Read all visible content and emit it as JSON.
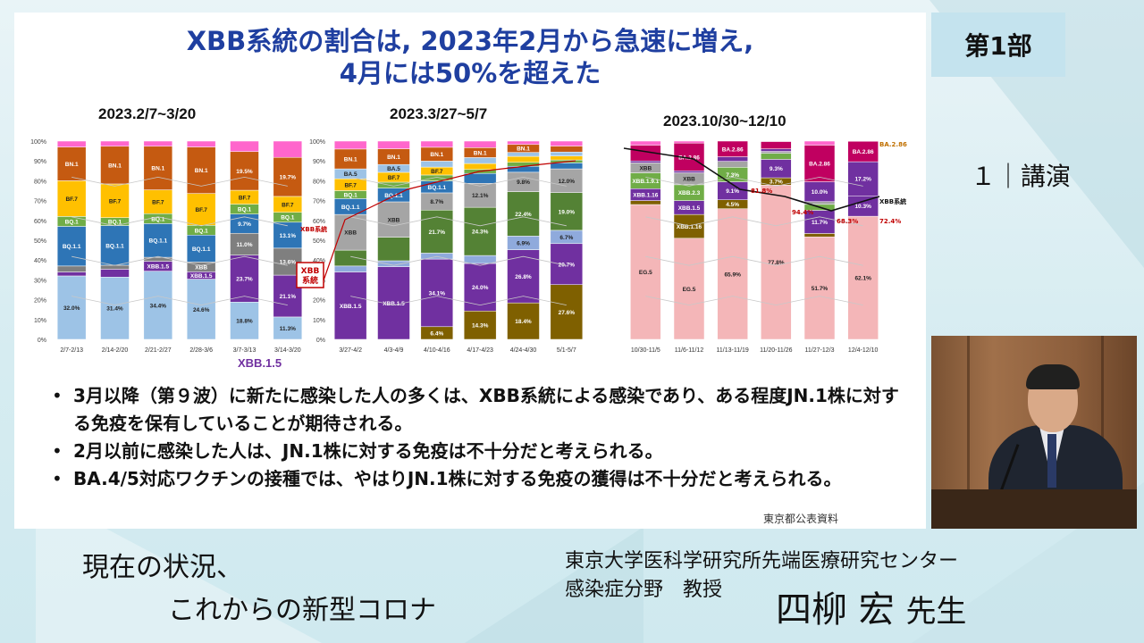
{
  "slide": {
    "title_line1": "XBB系統の割合は, 2023年2月から急速に増え,",
    "title_line2": "4月には50%を超えた",
    "source": "東京都公表資料",
    "bullets": [
      "3月以降（第９波）に新たに感染した人の多くは、XBB系統による感染であり、ある程度JN.1株に対する免疫を保有していることが期待される。",
      "2月以前に感染した人は、JN.1株に対する免疫は不十分だと考えられる。",
      "BA.4/5対応ワクチンの接種では、やはりJN.1株に対する免疫の獲得は不十分だと考えられる。"
    ],
    "bullet_marker": "•"
  },
  "part_tag": "第1部",
  "lecture_label": "１｜講演",
  "talk": {
    "line1": "現在の状況、",
    "line2": "これからの新型コロナ"
  },
  "affiliation": {
    "line1": "東京大学医科学研究所先端医療研究センター",
    "line2": "感染症分野　教授"
  },
  "speaker": {
    "name": "四柳 宏",
    "honorific": "先生"
  },
  "chart_data": [
    {
      "type": "bar",
      "title": "2023.2/7~3/20",
      "categories": [
        "2/7-2/13",
        "2/14-2/20",
        "2/21-2/27",
        "2/28-3/6",
        "3/7-3/13",
        "3/14-3/20"
      ],
      "ylim": [
        0,
        100
      ],
      "yticks": [
        "0%",
        "10%",
        "20%",
        "30%",
        "40%",
        "50%",
        "60%",
        "70%",
        "80%",
        "90%",
        "100%"
      ],
      "series": [
        {
          "name": "BA.5",
          "color": "#9dc3e6",
          "values": [
            32.0,
            31.4,
            34.4,
            24.6,
            18.8,
            11.3
          ],
          "labels": [
            "32.0%",
            "31.4%",
            "34.4%",
            "24.6%",
            "18.8%",
            "11.3%"
          ]
        },
        {
          "name": "XBB.1.5",
          "color": "#7030a0",
          "values": [
            2,
            4,
            5,
            3,
            23.7,
            21.1
          ],
          "labels": [
            "",
            "",
            "XBB.1.5",
            "XBB.1.5",
            "23.7%",
            "21.1%"
          ]
        },
        {
          "name": "XBB",
          "color": "#7f7f7f",
          "values": [
            3,
            2,
            2,
            4,
            11.0,
            13.6
          ],
          "labels": [
            "",
            "",
            "",
            "XBB",
            "11.0%",
            "13.6%"
          ]
        },
        {
          "name": "BQ.1.1",
          "color": "#2e75b6",
          "values": [
            20,
            20,
            17,
            11,
            9.7,
            13.1
          ],
          "labels": [
            "BQ.1.1",
            "BQ.1.1",
            "BQ.1.1",
            "BQ.1.1",
            "9.7%",
            "13.1%"
          ]
        },
        {
          "name": "BQ.1",
          "color": "#70ad47",
          "values": [
            5,
            4,
            5,
            4,
            5,
            5
          ],
          "labels": [
            "BQ.1",
            "BQ.1",
            "BQ.1",
            "BQ.1",
            "BQ.1",
            "BQ.1"
          ]
        },
        {
          "name": "BF.7",
          "color": "#ffc000",
          "values": [
            18,
            17,
            12,
            13,
            7,
            8
          ],
          "labels": [
            "BF.7",
            "BF.7",
            "BF.7",
            "BF.7",
            "BF.7",
            "BF.7"
          ]
        },
        {
          "name": "BN.1",
          "color": "#c55a11",
          "values": [
            17,
            19,
            22,
            19,
            19.5,
            19.7
          ],
          "labels": [
            "BN.1",
            "BN.1",
            "BN.1",
            "BN.1",
            "19.5%",
            "19.7%"
          ]
        },
        {
          "name": "other",
          "color": "#ff66cc",
          "values": [
            3,
            2.6,
            2.6,
            2.4,
            5.3,
            8.2
          ],
          "labels": [
            "",
            "",
            "",
            "",
            "",
            ""
          ]
        }
      ],
      "annotations": [
        "XBB.1.5",
        "XBB系統",
        "XBB系統"
      ]
    },
    {
      "type": "bar",
      "title": "2023.3/27~5/7",
      "categories": [
        "3/27-4/2",
        "4/3-4/9",
        "4/10-4/16",
        "4/17-4/23",
        "4/24-4/30",
        "5/1-5/7"
      ],
      "ylim": [
        0,
        100
      ],
      "yticks": [
        "0%",
        "10%",
        "20%",
        "30%",
        "40%",
        "50%",
        "60%",
        "70%",
        "80%",
        "90%",
        "100%"
      ],
      "series": [
        {
          "name": "XBB.1.16",
          "color": "#7f6000",
          "values": [
            0,
            0,
            6.4,
            14.3,
            18.4,
            27.6
          ],
          "labels": [
            "",
            "",
            "6.4%",
            "14.3%",
            "18.4%",
            "27.6%"
          ]
        },
        {
          "name": "XBB.1.5",
          "color": "#7030a0",
          "values": [
            34,
            37,
            34.1,
            24.0,
            26.8,
            20.7
          ],
          "labels": [
            "XBB.1.5",
            "XBB.1.5",
            "34.1%",
            "24.0%",
            "26.8%",
            "20.7%"
          ]
        },
        {
          "name": "XBB.1.9.2",
          "color": "#8faadc",
          "values": [
            3,
            3,
            3,
            4,
            6.9,
            6.7
          ],
          "labels": [
            "",
            "",
            "",
            "",
            "6.9%",
            "6.7%"
          ]
        },
        {
          "name": "XBB.1.9.1",
          "color": "#548235",
          "values": [
            8,
            12,
            21.7,
            24.3,
            22.4,
            19.0
          ],
          "labels": [
            "",
            "",
            "21.7%",
            "24.3%",
            "22.4%",
            "19.0%"
          ]
        },
        {
          "name": "XBB",
          "color": "#a5a5a5",
          "values": [
            18,
            18,
            8.7,
            12.1,
            9.8,
            12.0
          ],
          "labels": [
            "XBB",
            "XBB",
            "8.7%",
            "12.1%",
            "9.8%",
            "12.0%"
          ]
        },
        {
          "name": "BQ.1.1",
          "color": "#2e75b6",
          "values": [
            8,
            7,
            6,
            5,
            3,
            3
          ],
          "labels": [
            "BQ.1.1",
            "BQ.1.1",
            "BQ.1.1",
            "",
            "",
            ""
          ]
        },
        {
          "name": "BQ.1",
          "color": "#70ad47",
          "values": [
            4,
            3,
            3,
            2,
            2,
            1.5
          ],
          "labels": [
            "BQ.1",
            "BQ.1",
            "",
            "",
            "",
            ""
          ]
        },
        {
          "name": "BF.7",
          "color": "#ffc000",
          "values": [
            6,
            5,
            4,
            3,
            3,
            2
          ],
          "labels": [
            "BF.7",
            "BF.7",
            "BF.7",
            "BF.7",
            "BF.7",
            ""
          ]
        },
        {
          "name": "BA.5",
          "color": "#9dc3e6",
          "values": [
            5,
            4,
            3,
            3,
            2,
            2
          ],
          "labels": [
            "BA.5",
            "BA.5",
            "BA.5",
            "BA.5",
            "",
            ""
          ]
        },
        {
          "name": "BN.1",
          "color": "#c55a11",
          "values": [
            10,
            8,
            7,
            5,
            4,
            3
          ],
          "labels": [
            "BN.1",
            "BN.1",
            "BN.1",
            "BN.1",
            "BN.1",
            ""
          ]
        },
        {
          "name": "BA.2.75",
          "color": "#ff66cc",
          "values": [
            4,
            3.9,
            3.1,
            3.3,
            1.7,
            2.5
          ],
          "labels": [
            "",
            "",
            "",
            "",
            "BA.2.75",
            "BA.2.75"
          ]
        }
      ]
    },
    {
      "type": "bar",
      "title": "2023.10/30~12/10",
      "categories": [
        "10/30-11/5",
        "11/6-11/12",
        "11/13-11/19",
        "11/20-11/26",
        "11/27-12/3",
        "12/4-12/10"
      ],
      "ylim": [
        0,
        100
      ],
      "series": [
        {
          "name": "EG.5",
          "color": "#f4b6b8",
          "values": [
            68,
            51,
            65.9,
            77.8,
            51.7,
            62.1
          ],
          "labels": [
            "EG.5",
            "EG.5",
            "65.9%",
            "77.8%",
            "51.7%",
            "62.1%"
          ]
        },
        {
          "name": "XBB.1.16",
          "color": "#7f6000",
          "values": [
            2,
            12,
            4.5,
            3.7,
            1.7,
            0
          ],
          "labels": [
            "",
            "XBB.1.16",
            "4.5%",
            "3.7%",
            "1.7%",
            ""
          ]
        },
        {
          "name": "XBB.1.5",
          "color": "#7030a0",
          "values": [
            6,
            7,
            9.1,
            9.3,
            11.7,
            10.3
          ],
          "labels": [
            "XBB.1.16",
            "XBB.1.5",
            "9.1%",
            "9.3%",
            "11.7%",
            "10.3%"
          ]
        },
        {
          "name": "XBB.2.3",
          "color": "#70ad47",
          "values": [
            8,
            8,
            7.3,
            3,
            3,
            0
          ],
          "labels": [
            "XBB.1.9.1",
            "XBB.2.3",
            "7.3%",
            "",
            "",
            ""
          ]
        },
        {
          "name": "XBB",
          "color": "#a5a5a5",
          "values": [
            5,
            6,
            3,
            1,
            1.4,
            0
          ],
          "labels": [
            "XBB",
            "XBB",
            "",
            "",
            "",
            ""
          ]
        },
        {
          "name": "JN.1",
          "color": "#7030a0",
          "values": [
            1,
            1,
            2.3,
            1.3,
            10.0,
            17.2
          ],
          "labels": [
            "JN.1",
            "",
            "",
            "1.3%",
            "10.0%",
            "17.2%"
          ]
        },
        {
          "name": "BA.2.86",
          "color": "#c00060",
          "values": [
            8,
            14,
            7.9,
            3.7,
            18.5,
            10.3
          ],
          "labels": [
            "",
            "BA.2.86",
            "BA.2.86",
            "",
            "BA.2.86",
            "BA.2.86"
          ]
        },
        {
          "name": "other",
          "color": "#ff66cc",
          "values": [
            2,
            1,
            0,
            0.2,
            2,
            0.1
          ],
          "labels": [
            "",
            "",
            "",
            "",
            "",
            ""
          ]
        }
      ],
      "line_labels": [
        "81.8%",
        "94.4%",
        "68.3%",
        "72.4%"
      ],
      "annotations": [
        "XBB系統",
        "BA.2.86"
      ]
    }
  ]
}
